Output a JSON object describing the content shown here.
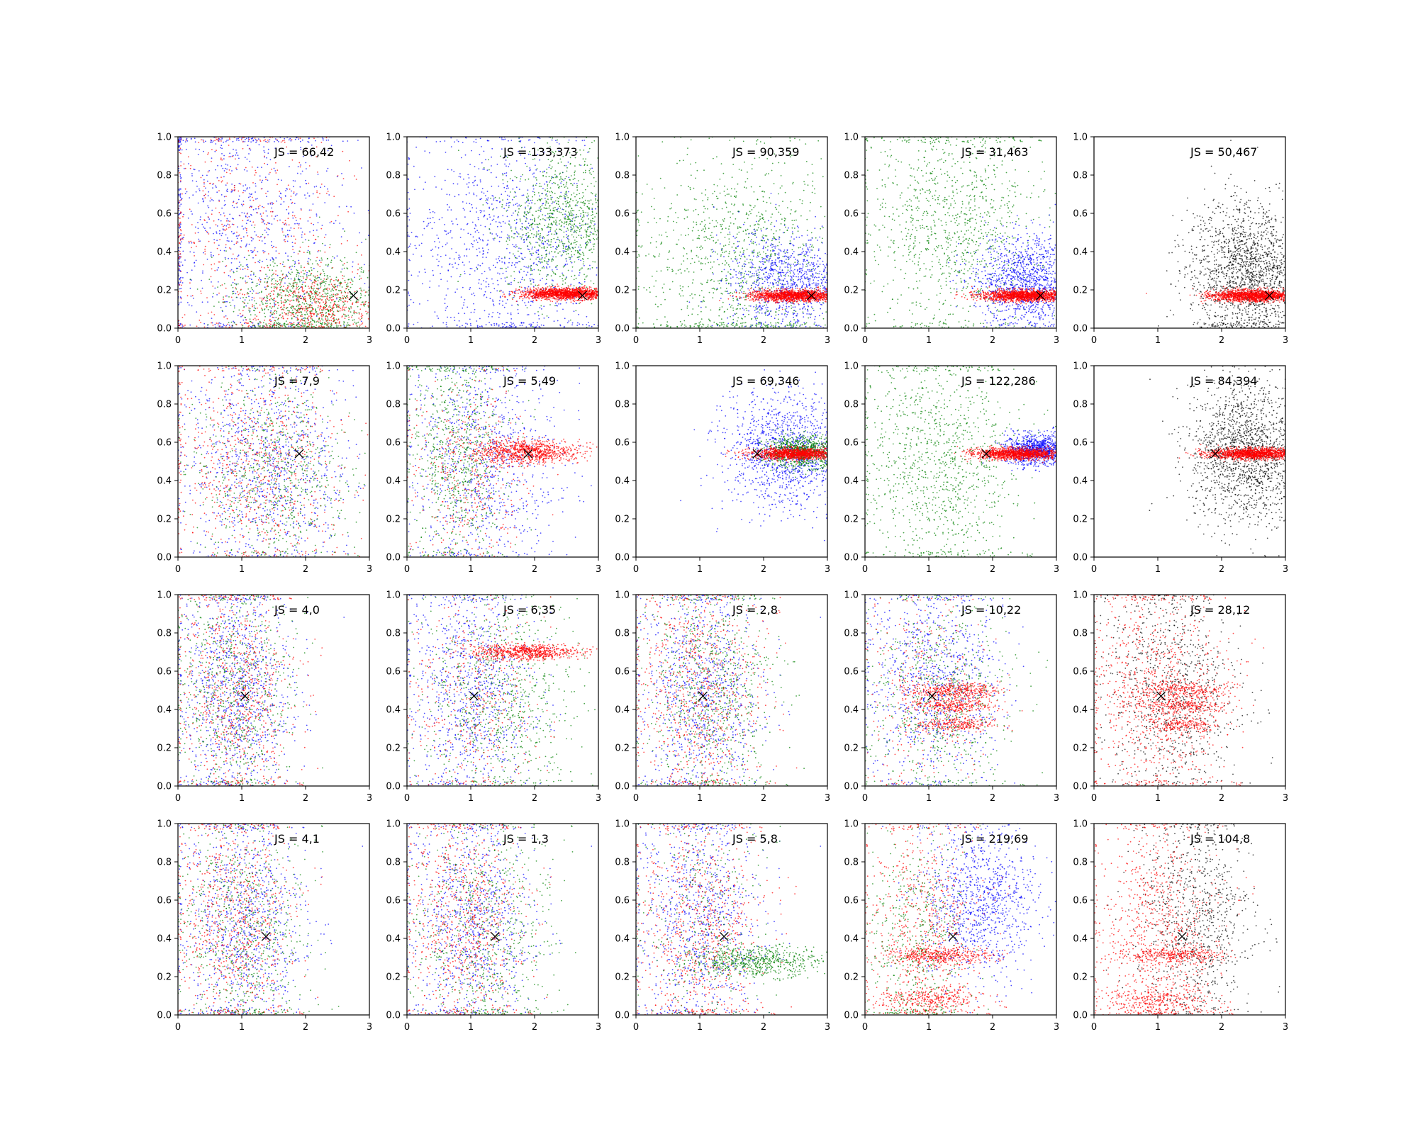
{
  "figure": {
    "rows": 4,
    "cols": 5
  },
  "chart_data": [
    {
      "type": "scatter",
      "label": "JS = 66,42",
      "xlim": [
        0,
        3
      ],
      "ylim": [
        0,
        1
      ],
      "x_ticks": [
        "0",
        "1",
        "2",
        "3"
      ],
      "y_ticks": [
        "0.0",
        "0.2",
        "0.4",
        "0.6",
        "0.8",
        "1.0"
      ],
      "marker": {
        "x": 2.75,
        "y": 0.17
      },
      "mode": "row0",
      "clusters": [
        {
          "color": "#0000ff",
          "cx": 1.0,
          "cy": 0.55,
          "sx": 0.9,
          "sy": 0.35,
          "n": 900
        },
        {
          "color": "#ff0000",
          "cx": 1.0,
          "cy": 0.5,
          "sx": 0.8,
          "sy": 0.35,
          "n": 500
        },
        {
          "color": "#008000",
          "cx": 2.0,
          "cy": 0.15,
          "sx": 0.6,
          "sy": 0.12,
          "n": 900
        },
        {
          "color": "#ff0000",
          "cx": 2.2,
          "cy": 0.12,
          "sx": 0.5,
          "sy": 0.08,
          "n": 500
        }
      ]
    },
    {
      "type": "scatter",
      "label": "JS = 133,373",
      "xlim": [
        0,
        3
      ],
      "ylim": [
        0,
        1
      ],
      "x_ticks": [
        "0",
        "1",
        "2",
        "3"
      ],
      "y_ticks": [
        "0.0",
        "0.2",
        "0.4",
        "0.6",
        "0.8",
        "1.0"
      ],
      "marker": {
        "x": 2.75,
        "y": 0.17
      },
      "clusters": [
        {
          "color": "#0000ff",
          "cx": 1.6,
          "cy": 0.45,
          "sx": 0.8,
          "sy": 0.3,
          "n": 1100
        },
        {
          "color": "#008000",
          "cx": 2.5,
          "cy": 0.55,
          "sx": 0.5,
          "sy": 0.18,
          "n": 1100
        },
        {
          "color": "#ff0000",
          "cx": 2.5,
          "cy": 0.18,
          "sx": 0.35,
          "sy": 0.015,
          "n": 1500
        }
      ]
    },
    {
      "type": "scatter",
      "label": "JS = 90,359",
      "xlim": [
        0,
        3
      ],
      "ylim": [
        0,
        1
      ],
      "x_ticks": [
        "0",
        "1",
        "2",
        "3"
      ],
      "y_ticks": [
        "0.0",
        "0.2",
        "0.4",
        "0.6",
        "0.8",
        "1.0"
      ],
      "marker": {
        "x": 2.75,
        "y": 0.17
      },
      "clusters": [
        {
          "color": "#008000",
          "cx": 1.6,
          "cy": 0.35,
          "sx": 0.8,
          "sy": 0.3,
          "n": 1100
        },
        {
          "color": "#0000ff",
          "cx": 2.4,
          "cy": 0.25,
          "sx": 0.5,
          "sy": 0.12,
          "n": 1000
        },
        {
          "color": "#ff0000",
          "cx": 2.5,
          "cy": 0.17,
          "sx": 0.35,
          "sy": 0.015,
          "n": 1500
        }
      ]
    },
    {
      "type": "scatter",
      "label": "JS = 31,463",
      "xlim": [
        0,
        3
      ],
      "ylim": [
        0,
        1
      ],
      "x_ticks": [
        "0",
        "1",
        "2",
        "3"
      ],
      "y_ticks": [
        "0.0",
        "0.2",
        "0.4",
        "0.6",
        "0.8",
        "1.0"
      ],
      "marker": {
        "x": 2.75,
        "y": 0.17
      },
      "clusters": [
        {
          "color": "#008000",
          "cx": 1.4,
          "cy": 0.55,
          "sx": 0.7,
          "sy": 0.3,
          "n": 1100
        },
        {
          "color": "#0000ff",
          "cx": 2.5,
          "cy": 0.25,
          "sx": 0.4,
          "sy": 0.12,
          "n": 1200
        },
        {
          "color": "#ff0000",
          "cx": 2.5,
          "cy": 0.17,
          "sx": 0.35,
          "sy": 0.015,
          "n": 1500
        }
      ]
    },
    {
      "type": "scatter",
      "label": "JS = 50,467",
      "xlim": [
        0,
        3
      ],
      "ylim": [
        0,
        1
      ],
      "x_ticks": [
        "0",
        "1",
        "2",
        "3"
      ],
      "y_ticks": [
        "0.0",
        "0.2",
        "0.4",
        "0.6",
        "0.8",
        "1.0"
      ],
      "marker": {
        "x": 2.75,
        "y": 0.17
      },
      "clusters": [
        {
          "color": "#000000",
          "cx": 2.4,
          "cy": 0.3,
          "sx": 0.45,
          "sy": 0.18,
          "n": 1700
        },
        {
          "color": "#ff0000",
          "cx": 2.5,
          "cy": 0.17,
          "sx": 0.35,
          "sy": 0.015,
          "n": 1500
        }
      ]
    },
    {
      "type": "scatter",
      "label": "JS = 7,9",
      "xlim": [
        0,
        3
      ],
      "ylim": [
        0,
        1
      ],
      "x_ticks": [
        "0",
        "1",
        "2",
        "3"
      ],
      "y_ticks": [
        "0.0",
        "0.2",
        "0.4",
        "0.6",
        "0.8",
        "1.0"
      ],
      "marker": {
        "x": 1.9,
        "y": 0.54
      },
      "clusters": [
        {
          "color": "#0000ff",
          "cx": 1.4,
          "cy": 0.5,
          "sx": 0.7,
          "sy": 0.28,
          "n": 1000
        },
        {
          "color": "#ff0000",
          "cx": 1.2,
          "cy": 0.5,
          "sx": 0.7,
          "sy": 0.28,
          "n": 800
        },
        {
          "color": "#008000",
          "cx": 1.5,
          "cy": 0.45,
          "sx": 0.6,
          "sy": 0.25,
          "n": 700
        }
      ]
    },
    {
      "type": "scatter",
      "label": "JS = 5,49",
      "xlim": [
        0,
        3
      ],
      "ylim": [
        0,
        1
      ],
      "x_ticks": [
        "0",
        "1",
        "2",
        "3"
      ],
      "y_ticks": [
        "0.0",
        "0.2",
        "0.4",
        "0.6",
        "0.8",
        "1.0"
      ],
      "marker": {
        "x": 1.9,
        "y": 0.54
      },
      "clusters": [
        {
          "color": "#0000ff",
          "cx": 1.2,
          "cy": 0.5,
          "sx": 0.6,
          "sy": 0.3,
          "n": 900
        },
        {
          "color": "#008000",
          "cx": 0.8,
          "cy": 0.55,
          "sx": 0.4,
          "sy": 0.3,
          "n": 800
        },
        {
          "color": "#ff0000",
          "cx": 1.9,
          "cy": 0.55,
          "sx": 0.4,
          "sy": 0.03,
          "n": 900
        },
        {
          "color": "#ff0000",
          "cx": 1.0,
          "cy": 0.45,
          "sx": 0.5,
          "sy": 0.25,
          "n": 400
        }
      ]
    },
    {
      "type": "scatter",
      "label": "JS = 69,346",
      "xlim": [
        0,
        3
      ],
      "ylim": [
        0,
        1
      ],
      "x_ticks": [
        "0",
        "1",
        "2",
        "3"
      ],
      "y_ticks": [
        "0.0",
        "0.2",
        "0.4",
        "0.6",
        "0.8",
        "1.0"
      ],
      "marker": {
        "x": 1.9,
        "y": 0.54
      },
      "clusters": [
        {
          "color": "#0000ff",
          "cx": 2.4,
          "cy": 0.55,
          "sx": 0.5,
          "sy": 0.15,
          "n": 1300
        },
        {
          "color": "#008000",
          "cx": 2.6,
          "cy": 0.55,
          "sx": 0.3,
          "sy": 0.04,
          "n": 900
        },
        {
          "color": "#ff0000",
          "cx": 2.5,
          "cy": 0.54,
          "sx": 0.35,
          "sy": 0.015,
          "n": 1300
        }
      ]
    },
    {
      "type": "scatter",
      "label": "JS = 122,286",
      "xlim": [
        0,
        3
      ],
      "ylim": [
        0,
        1
      ],
      "x_ticks": [
        "0",
        "1",
        "2",
        "3"
      ],
      "y_ticks": [
        "0.0",
        "0.2",
        "0.4",
        "0.6",
        "0.8",
        "1.0"
      ],
      "marker": {
        "x": 1.9,
        "y": 0.54
      },
      "clusters": [
        {
          "color": "#008000",
          "cx": 1.2,
          "cy": 0.5,
          "sx": 0.6,
          "sy": 0.3,
          "n": 1100
        },
        {
          "color": "#0000ff",
          "cx": 2.7,
          "cy": 0.56,
          "sx": 0.25,
          "sy": 0.04,
          "n": 1000
        },
        {
          "color": "#ff0000",
          "cx": 2.4,
          "cy": 0.54,
          "sx": 0.35,
          "sy": 0.015,
          "n": 1300
        }
      ]
    },
    {
      "type": "scatter",
      "label": "JS = 84,394",
      "xlim": [
        0,
        3
      ],
      "ylim": [
        0,
        1
      ],
      "x_ticks": [
        "0",
        "1",
        "2",
        "3"
      ],
      "y_ticks": [
        "0.0",
        "0.2",
        "0.4",
        "0.6",
        "0.8",
        "1.0"
      ],
      "marker": {
        "x": 1.9,
        "y": 0.54
      },
      "clusters": [
        {
          "color": "#000000",
          "cx": 2.4,
          "cy": 0.55,
          "sx": 0.45,
          "sy": 0.18,
          "n": 1700
        },
        {
          "color": "#ff0000",
          "cx": 2.5,
          "cy": 0.54,
          "sx": 0.35,
          "sy": 0.015,
          "n": 1400
        }
      ]
    },
    {
      "type": "scatter",
      "label": "JS = 4,0",
      "xlim": [
        0,
        3
      ],
      "ylim": [
        0,
        1
      ],
      "x_ticks": [
        "0",
        "1",
        "2",
        "3"
      ],
      "y_ticks": [
        "0.0",
        "0.2",
        "0.4",
        "0.6",
        "0.8",
        "1.0"
      ],
      "marker": {
        "x": 1.05,
        "y": 0.47
      },
      "clusters": [
        {
          "color": "#0000ff",
          "cx": 0.9,
          "cy": 0.5,
          "sx": 0.45,
          "sy": 0.3,
          "n": 1000
        },
        {
          "color": "#ff0000",
          "cx": 0.9,
          "cy": 0.5,
          "sx": 0.45,
          "sy": 0.3,
          "n": 800
        },
        {
          "color": "#008000",
          "cx": 0.9,
          "cy": 0.5,
          "sx": 0.45,
          "sy": 0.3,
          "n": 700
        }
      ]
    },
    {
      "type": "scatter",
      "label": "JS = 6,35",
      "xlim": [
        0,
        3
      ],
      "ylim": [
        0,
        1
      ],
      "x_ticks": [
        "0",
        "1",
        "2",
        "3"
      ],
      "y_ticks": [
        "0.0",
        "0.2",
        "0.4",
        "0.6",
        "0.8",
        "1.0"
      ],
      "marker": {
        "x": 1.05,
        "y": 0.47
      },
      "clusters": [
        {
          "color": "#0000ff",
          "cx": 1.0,
          "cy": 0.5,
          "sx": 0.5,
          "sy": 0.3,
          "n": 900
        },
        {
          "color": "#008000",
          "cx": 1.5,
          "cy": 0.45,
          "sx": 0.6,
          "sy": 0.28,
          "n": 800
        },
        {
          "color": "#ff0000",
          "cx": 1.9,
          "cy": 0.7,
          "sx": 0.4,
          "sy": 0.02,
          "n": 700
        },
        {
          "color": "#ff0000",
          "cx": 1.0,
          "cy": 0.45,
          "sx": 0.5,
          "sy": 0.28,
          "n": 400
        }
      ]
    },
    {
      "type": "scatter",
      "label": "JS = 2,8",
      "xlim": [
        0,
        3
      ],
      "ylim": [
        0,
        1
      ],
      "x_ticks": [
        "0",
        "1",
        "2",
        "3"
      ],
      "y_ticks": [
        "0.0",
        "0.2",
        "0.4",
        "0.6",
        "0.8",
        "1.0"
      ],
      "marker": {
        "x": 1.05,
        "y": 0.47
      },
      "clusters": [
        {
          "color": "#0000ff",
          "cx": 1.0,
          "cy": 0.5,
          "sx": 0.5,
          "sy": 0.3,
          "n": 900
        },
        {
          "color": "#008000",
          "cx": 1.2,
          "cy": 0.5,
          "sx": 0.5,
          "sy": 0.3,
          "n": 800
        },
        {
          "color": "#ff0000",
          "cx": 1.0,
          "cy": 0.5,
          "sx": 0.5,
          "sy": 0.3,
          "n": 800
        }
      ]
    },
    {
      "type": "scatter",
      "label": "JS = 10,22",
      "xlim": [
        0,
        3
      ],
      "ylim": [
        0,
        1
      ],
      "x_ticks": [
        "0",
        "1",
        "2",
        "3"
      ],
      "y_ticks": [
        "0.0",
        "0.2",
        "0.4",
        "0.6",
        "0.8",
        "1.0"
      ],
      "marker": {
        "x": 1.05,
        "y": 0.47
      },
      "clusters": [
        {
          "color": "#0000ff",
          "cx": 1.1,
          "cy": 0.55,
          "sx": 0.55,
          "sy": 0.28,
          "n": 900
        },
        {
          "color": "#008000",
          "cx": 1.2,
          "cy": 0.45,
          "sx": 0.55,
          "sy": 0.28,
          "n": 700
        },
        {
          "color": "#ff0000",
          "cx": 1.4,
          "cy": 0.5,
          "sx": 0.35,
          "sy": 0.02,
          "n": 350
        },
        {
          "color": "#ff0000",
          "cx": 1.4,
          "cy": 0.42,
          "sx": 0.35,
          "sy": 0.02,
          "n": 300
        },
        {
          "color": "#ff0000",
          "cx": 1.4,
          "cy": 0.32,
          "sx": 0.3,
          "sy": 0.02,
          "n": 250
        },
        {
          "color": "#ff0000",
          "cx": 1.0,
          "cy": 0.5,
          "sx": 0.5,
          "sy": 0.3,
          "n": 300
        }
      ]
    },
    {
      "type": "scatter",
      "label": "JS = 28,12",
      "xlim": [
        0,
        3
      ],
      "ylim": [
        0,
        1
      ],
      "x_ticks": [
        "0",
        "1",
        "2",
        "3"
      ],
      "y_ticks": [
        "0.0",
        "0.2",
        "0.4",
        "0.6",
        "0.8",
        "1.0"
      ],
      "marker": {
        "x": 1.05,
        "y": 0.47
      },
      "clusters": [
        {
          "color": "#000000",
          "cx": 1.2,
          "cy": 0.5,
          "sx": 0.55,
          "sy": 0.28,
          "n": 900
        },
        {
          "color": "#ff0000",
          "cx": 1.0,
          "cy": 0.5,
          "sx": 0.55,
          "sy": 0.3,
          "n": 900
        },
        {
          "color": "#ff0000",
          "cx": 1.4,
          "cy": 0.5,
          "sx": 0.35,
          "sy": 0.02,
          "n": 250
        },
        {
          "color": "#ff0000",
          "cx": 1.4,
          "cy": 0.42,
          "sx": 0.35,
          "sy": 0.02,
          "n": 250
        },
        {
          "color": "#ff0000",
          "cx": 1.4,
          "cy": 0.32,
          "sx": 0.3,
          "sy": 0.02,
          "n": 200
        }
      ]
    },
    {
      "type": "scatter",
      "label": "JS = 4,1",
      "xlim": [
        0,
        3
      ],
      "ylim": [
        0,
        1
      ],
      "x_ticks": [
        "0",
        "1",
        "2",
        "3"
      ],
      "y_ticks": [
        "0.0",
        "0.2",
        "0.4",
        "0.6",
        "0.8",
        "1.0"
      ],
      "marker": {
        "x": 1.38,
        "y": 0.41
      },
      "clusters": [
        {
          "color": "#0000ff",
          "cx": 1.0,
          "cy": 0.5,
          "sx": 0.5,
          "sy": 0.3,
          "n": 900
        },
        {
          "color": "#ff0000",
          "cx": 0.9,
          "cy": 0.5,
          "sx": 0.45,
          "sy": 0.3,
          "n": 800
        },
        {
          "color": "#008000",
          "cx": 1.0,
          "cy": 0.45,
          "sx": 0.5,
          "sy": 0.3,
          "n": 700
        }
      ]
    },
    {
      "type": "scatter",
      "label": "JS = 1,3",
      "xlim": [
        0,
        3
      ],
      "ylim": [
        0,
        1
      ],
      "x_ticks": [
        "0",
        "1",
        "2",
        "3"
      ],
      "y_ticks": [
        "0.0",
        "0.2",
        "0.4",
        "0.6",
        "0.8",
        "1.0"
      ],
      "marker": {
        "x": 1.38,
        "y": 0.41
      },
      "clusters": [
        {
          "color": "#0000ff",
          "cx": 1.0,
          "cy": 0.5,
          "sx": 0.5,
          "sy": 0.3,
          "n": 900
        },
        {
          "color": "#ff0000",
          "cx": 0.9,
          "cy": 0.5,
          "sx": 0.45,
          "sy": 0.3,
          "n": 800
        },
        {
          "color": "#008000",
          "cx": 1.2,
          "cy": 0.45,
          "sx": 0.55,
          "sy": 0.3,
          "n": 700
        }
      ]
    },
    {
      "type": "scatter",
      "label": "JS = 5,8",
      "xlim": [
        0,
        3
      ],
      "ylim": [
        0,
        1
      ],
      "x_ticks": [
        "0",
        "1",
        "2",
        "3"
      ],
      "y_ticks": [
        "0.0",
        "0.2",
        "0.4",
        "0.6",
        "0.8",
        "1.0"
      ],
      "marker": {
        "x": 1.38,
        "y": 0.41
      },
      "clusters": [
        {
          "color": "#0000ff",
          "cx": 1.0,
          "cy": 0.5,
          "sx": 0.5,
          "sy": 0.3,
          "n": 900
        },
        {
          "color": "#ff0000",
          "cx": 1.0,
          "cy": 0.45,
          "sx": 0.5,
          "sy": 0.3,
          "n": 800
        },
        {
          "color": "#008000",
          "cx": 1.9,
          "cy": 0.28,
          "sx": 0.5,
          "sy": 0.04,
          "n": 600
        },
        {
          "color": "#008000",
          "cx": 1.0,
          "cy": 0.5,
          "sx": 0.5,
          "sy": 0.3,
          "n": 300
        }
      ]
    },
    {
      "type": "scatter",
      "label": "JS = 219,69",
      "xlim": [
        0,
        3
      ],
      "ylim": [
        0,
        1
      ],
      "x_ticks": [
        "0",
        "1",
        "2",
        "3"
      ],
      "y_ticks": [
        "0.0",
        "0.2",
        "0.4",
        "0.6",
        "0.8",
        "1.0"
      ],
      "marker": {
        "x": 1.38,
        "y": 0.41
      },
      "clusters": [
        {
          "color": "#0000ff",
          "cx": 1.8,
          "cy": 0.6,
          "sx": 0.45,
          "sy": 0.2,
          "n": 1000
        },
        {
          "color": "#ff0000",
          "cx": 0.9,
          "cy": 0.45,
          "sx": 0.45,
          "sy": 0.3,
          "n": 700
        },
        {
          "color": "#ff0000",
          "cx": 1.2,
          "cy": 0.31,
          "sx": 0.4,
          "sy": 0.02,
          "n": 400
        },
        {
          "color": "#ff0000",
          "cx": 1.0,
          "cy": 0.08,
          "sx": 0.4,
          "sy": 0.03,
          "n": 300
        },
        {
          "color": "#008000",
          "cx": 0.8,
          "cy": 0.4,
          "sx": 0.4,
          "sy": 0.3,
          "n": 500
        }
      ]
    },
    {
      "type": "scatter",
      "label": "JS = 104,8",
      "xlim": [
        0,
        3
      ],
      "ylim": [
        0,
        1
      ],
      "x_ticks": [
        "0",
        "1",
        "2",
        "3"
      ],
      "y_ticks": [
        "0.0",
        "0.2",
        "0.4",
        "0.6",
        "0.8",
        "1.0"
      ],
      "marker": {
        "x": 1.38,
        "y": 0.41
      },
      "clusters": [
        {
          "color": "#000000",
          "cx": 1.6,
          "cy": 0.5,
          "sx": 0.45,
          "sy": 0.28,
          "n": 900
        },
        {
          "color": "#ff0000",
          "cx": 1.0,
          "cy": 0.45,
          "sx": 0.5,
          "sy": 0.3,
          "n": 900
        },
        {
          "color": "#ff0000",
          "cx": 1.2,
          "cy": 0.31,
          "sx": 0.4,
          "sy": 0.02,
          "n": 300
        },
        {
          "color": "#ff0000",
          "cx": 1.0,
          "cy": 0.08,
          "sx": 0.4,
          "sy": 0.03,
          "n": 250
        }
      ]
    }
  ]
}
